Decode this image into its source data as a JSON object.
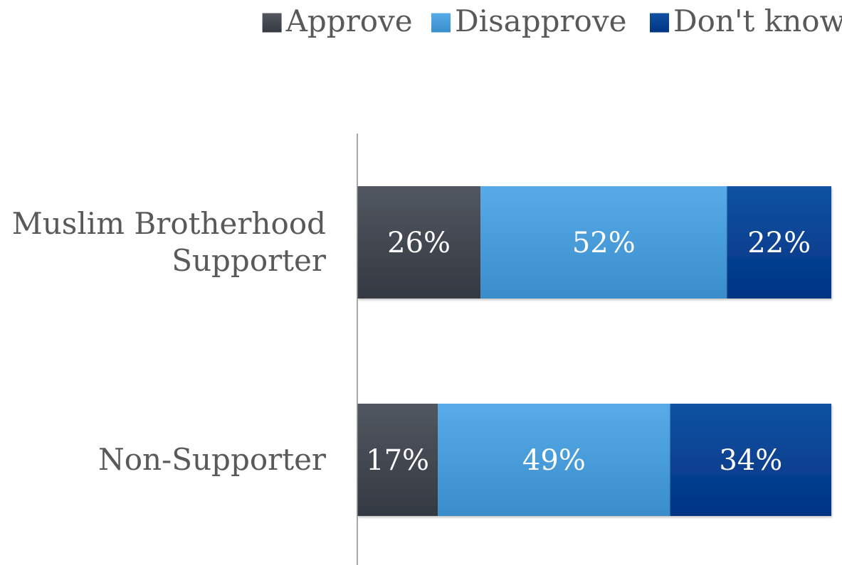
{
  "chart_data": {
    "type": "bar",
    "orientation": "horizontal",
    "stacked": true,
    "percent_stacked": true,
    "categories": [
      "Muslim Brotherhood Supporter",
      "Non-Supporter"
    ],
    "category_lines": [
      [
        "Muslim Brotherhood",
        "Supporter"
      ],
      [
        "Non-Supporter"
      ]
    ],
    "series": [
      {
        "name": "Approve",
        "values": [
          26,
          17
        ],
        "labels": [
          "26%",
          "17%"
        ],
        "color": "#4a4f58"
      },
      {
        "name": "Disapprove",
        "values": [
          52,
          49
        ],
        "labels": [
          "52%",
          "49%"
        ],
        "color": "#4fa3e0"
      },
      {
        "name": "Don't know",
        "values": [
          22,
          34
        ],
        "labels": [
          "22%",
          "34%"
        ],
        "color": "#0a4a9a"
      }
    ],
    "xlim": [
      0,
      100
    ],
    "grid": false,
    "legend": "top-right",
    "label_color": "#595959"
  }
}
